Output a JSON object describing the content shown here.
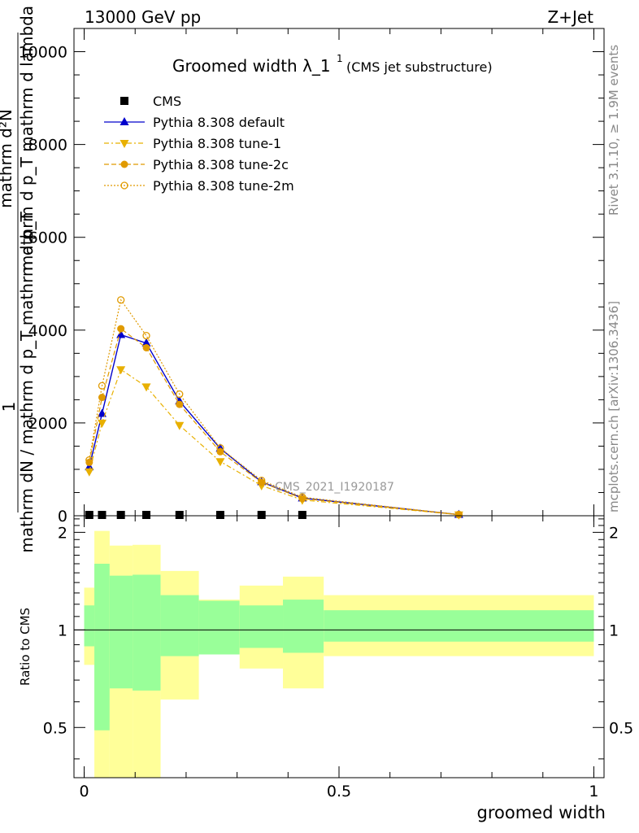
{
  "header": {
    "left": "13000 GeV pp",
    "right": "Z+Jet"
  },
  "side_labels": {
    "rivet": "Rivet 3.1.10, ≥ 1.9M events",
    "mcplots": "mcplots.cern.ch [arXiv:1306.3436]"
  },
  "chart_data": [
    {
      "type": "line",
      "title": "Groomed width λ_1",
      "title_superscript": "1",
      "subtitle": "(CMS jet substructure)",
      "analysis_label": "CMS_2021_I1920187",
      "ylabel_parts": [
        "1",
        "mathrm dN / mathrm d p_T mathrm d p_T",
        "mathrm d²N",
        "mathrm d p_T mathrm d lambda"
      ],
      "xlabel": "groomed width",
      "xlim": [
        -0.02,
        1.02
      ],
      "ylim": [
        0,
        10500
      ],
      "yticks": [
        0,
        2000,
        4000,
        6000,
        8000,
        10000
      ],
      "ytick_labels": [
        "0",
        "2000",
        "4000",
        "6000",
        "8000",
        "10000"
      ],
      "legend_position": "top-left",
      "series": [
        {
          "name": "CMS",
          "color": "#000000",
          "marker": "square",
          "x": [
            0.01,
            0.035,
            0.072,
            0.122,
            0.187,
            0.267,
            0.348,
            0.428
          ],
          "y": [
            5,
            5,
            5,
            5,
            5,
            5,
            5,
            5
          ]
        },
        {
          "name": "Pythia 8.308 default",
          "color": "#0000cc",
          "marker": "triangle-up",
          "dash": "",
          "x": [
            0.01,
            0.035,
            0.072,
            0.122,
            0.187,
            0.267,
            0.348,
            0.428,
            0.735
          ],
          "y": [
            1050,
            2200,
            3900,
            3720,
            2470,
            1450,
            730,
            380,
            25
          ]
        },
        {
          "name": "Pythia 8.308 tune-1",
          "color": "#e8b000",
          "marker": "triangle-down",
          "dash": "6,3,2,3",
          "x": [
            0.01,
            0.035,
            0.072,
            0.122,
            0.187,
            0.267,
            0.348,
            0.428,
            0.735
          ],
          "y": [
            950,
            2000,
            3150,
            2780,
            1950,
            1170,
            650,
            340,
            22
          ]
        },
        {
          "name": "Pythia 8.308 tune-2c",
          "color": "#e09a00",
          "marker": "circle-filled",
          "dash": "6,3",
          "x": [
            0.01,
            0.035,
            0.072,
            0.122,
            0.187,
            0.267,
            0.348,
            0.428,
            0.735
          ],
          "y": [
            1150,
            2550,
            4030,
            3620,
            2400,
            1380,
            720,
            370,
            24
          ]
        },
        {
          "name": "Pythia 8.308 tune-2m",
          "color": "#e09a00",
          "marker": "circle-open",
          "dash": "2,2",
          "x": [
            0.01,
            0.035,
            0.072,
            0.122,
            0.187,
            0.267,
            0.348,
            0.428,
            0.735
          ],
          "y": [
            1200,
            2800,
            4650,
            3880,
            2620,
            1460,
            760,
            400,
            26
          ]
        }
      ]
    },
    {
      "type": "area",
      "ylabel": "Ratio to CMS",
      "xlabel": "groomed width",
      "xlim": [
        -0.02,
        1.02
      ],
      "ylim": [
        0.35,
        2.25
      ],
      "yticks": [
        0.5,
        1,
        2
      ],
      "ytick_labels": [
        "0.5",
        "1",
        "2"
      ],
      "xticks": [
        0,
        0.5,
        1
      ],
      "xtick_labels": [
        "0",
        "0.5",
        "1"
      ],
      "bins": [
        {
          "lo": 0.0,
          "hi": 0.02,
          "inner": [
            0.89,
            1.19
          ],
          "outer": [
            0.78,
            1.35
          ]
        },
        {
          "lo": 0.02,
          "hi": 0.05,
          "inner": [
            0.49,
            1.6
          ],
          "outer": [
            0.35,
            2.02
          ]
        },
        {
          "lo": 0.05,
          "hi": 0.095,
          "inner": [
            0.66,
            1.47
          ],
          "outer": [
            0.35,
            1.82
          ]
        },
        {
          "lo": 0.095,
          "hi": 0.15,
          "inner": [
            0.65,
            1.48
          ],
          "outer": [
            0.35,
            1.83
          ]
        },
        {
          "lo": 0.15,
          "hi": 0.225,
          "inner": [
            0.83,
            1.28
          ],
          "outer": [
            0.61,
            1.52
          ]
        },
        {
          "lo": 0.225,
          "hi": 0.305,
          "inner": [
            0.84,
            1.23
          ],
          "outer": [
            0.84,
            1.24
          ]
        },
        {
          "lo": 0.305,
          "hi": 0.39,
          "inner": [
            0.88,
            1.19
          ],
          "outer": [
            0.76,
            1.37
          ]
        },
        {
          "lo": 0.39,
          "hi": 0.47,
          "inner": [
            0.85,
            1.24
          ],
          "outer": [
            0.66,
            1.46
          ]
        },
        {
          "lo": 0.47,
          "hi": 1.0,
          "inner": [
            0.92,
            1.15
          ],
          "outer": [
            0.83,
            1.28
          ]
        }
      ],
      "inner_color": "#99ff99",
      "outer_color": "#ffff99",
      "reference_line": 1
    }
  ]
}
